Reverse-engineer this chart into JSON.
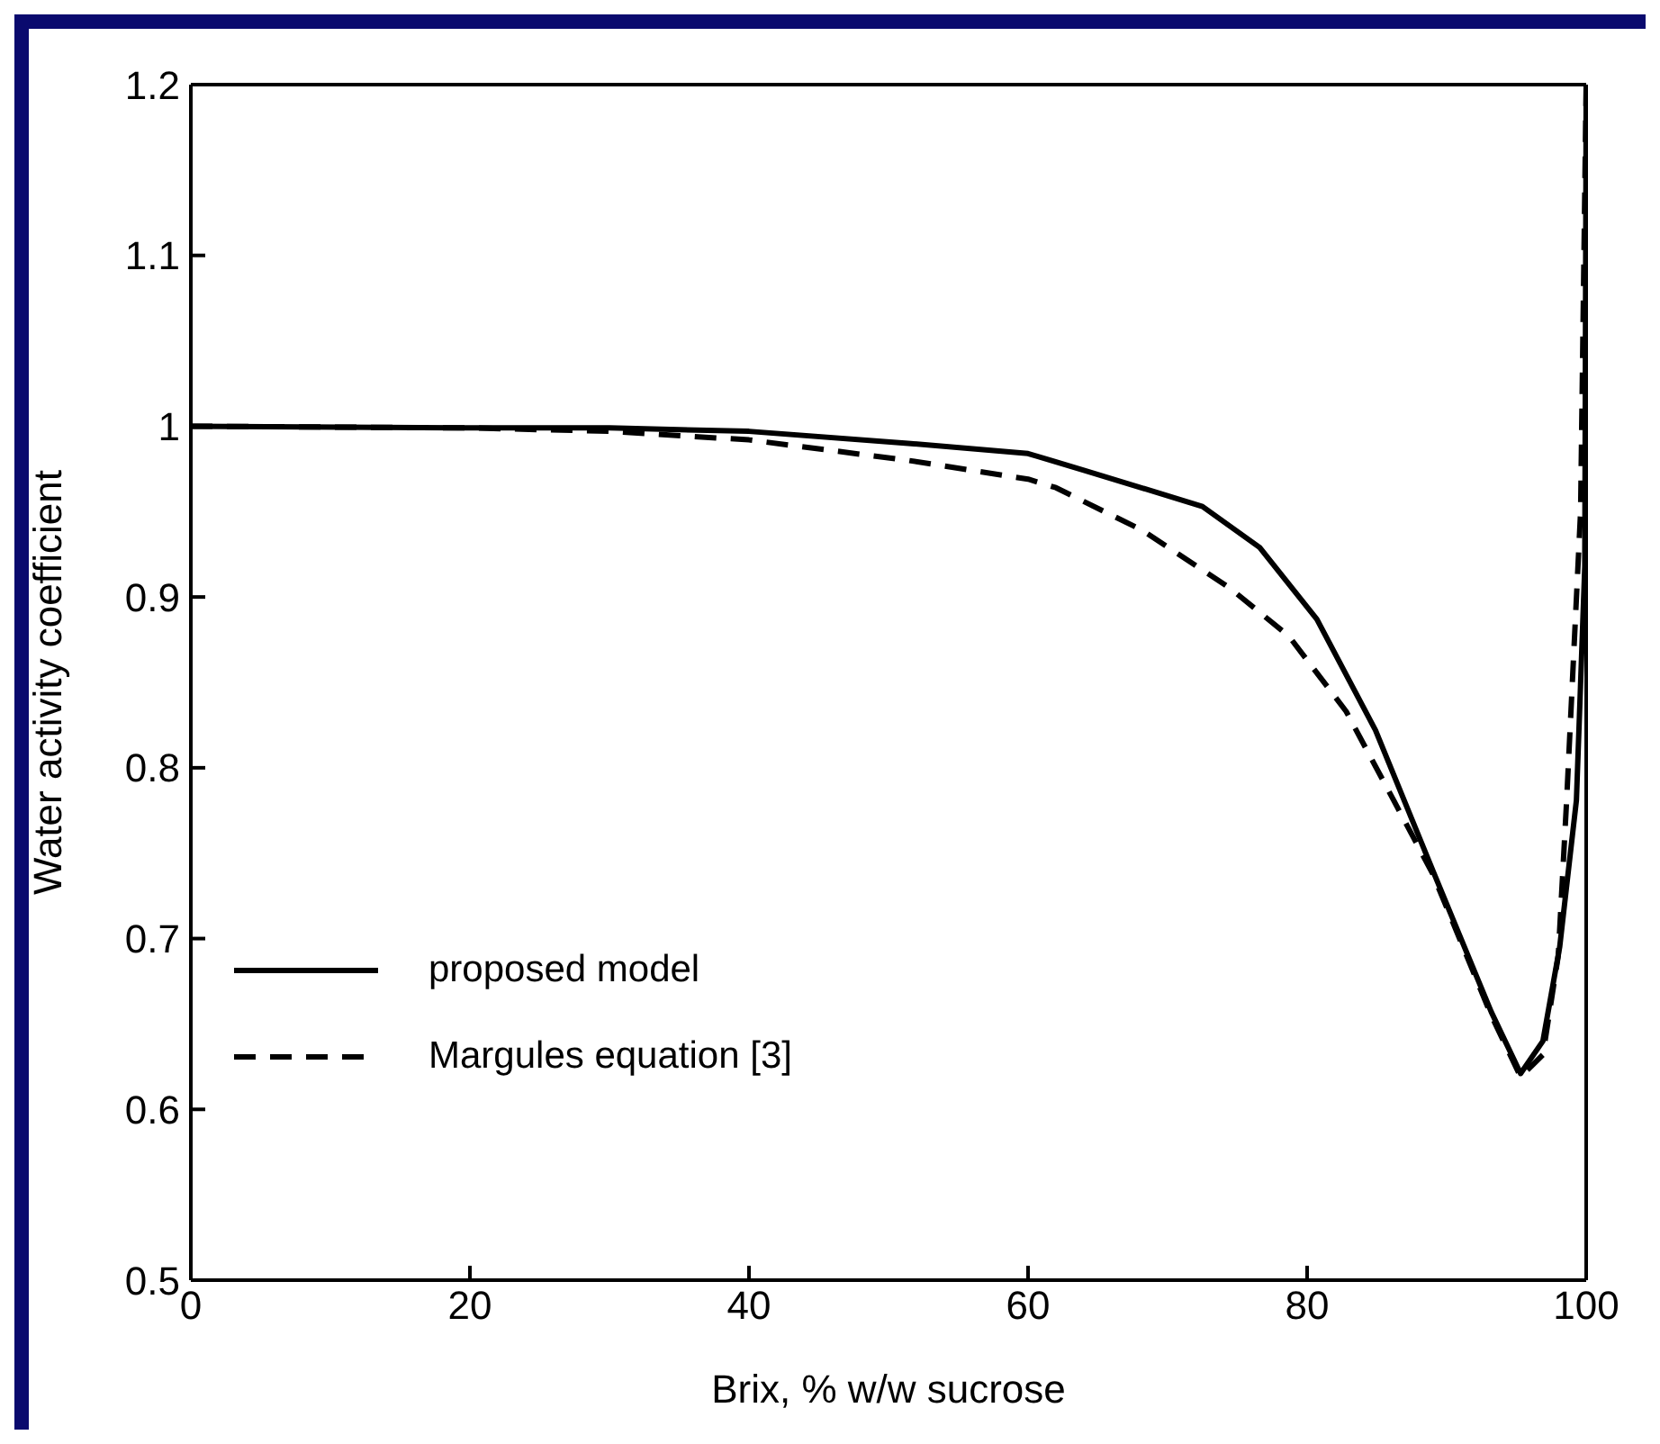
{
  "chart_data": {
    "type": "line",
    "xlabel": "Brix,  % w/w sucrose",
    "ylabel": "Water activity coefficient",
    "xlim": [
      0,
      100
    ],
    "xticks": [
      0,
      20,
      40,
      60,
      80,
      100
    ],
    "ylim": [
      0.5,
      1.2
    ],
    "yticks": [
      0.5,
      0.6,
      0.7,
      0.8,
      0.9,
      1,
      1.1,
      1.2
    ],
    "legend": "bottom left",
    "marker": "none",
    "series": [
      {
        "name": "proposed model",
        "color": "#000000",
        "line_style": "solid",
        "x": [
          0,
          20,
          30,
          40,
          51.4,
          60,
          64.1,
          72.5,
          76.6,
          80.7,
          84.9,
          89.0,
          93.2,
          95.3,
          96.9,
          98.1,
          99.3,
          99.9,
          100
        ],
        "values": [
          1,
          0.999,
          0.999,
          0.997,
          0.99,
          0.984,
          0.974,
          0.953,
          0.929,
          0.887,
          0.822,
          0.74,
          0.657,
          0.621,
          0.64,
          0.695,
          0.781,
          0.918,
          1.2
        ]
      },
      {
        "name": "Margules equation [3]",
        "color": "#000000",
        "line_style": "dashed",
        "x": [
          0,
          20,
          30,
          40,
          51.4,
          60,
          62.0,
          68.2,
          74.5,
          78.7,
          82.8,
          86.2,
          89.0,
          93.2,
          95.3,
          96.9,
          98.0,
          98.6,
          99.6,
          100
        ],
        "values": [
          1,
          0.999,
          0.997,
          0.992,
          0.98,
          0.969,
          0.964,
          0.939,
          0.905,
          0.877,
          0.833,
          0.781,
          0.738,
          0.655,
          0.619,
          0.632,
          0.69,
          0.781,
          0.95,
          1.2
        ]
      }
    ]
  }
}
